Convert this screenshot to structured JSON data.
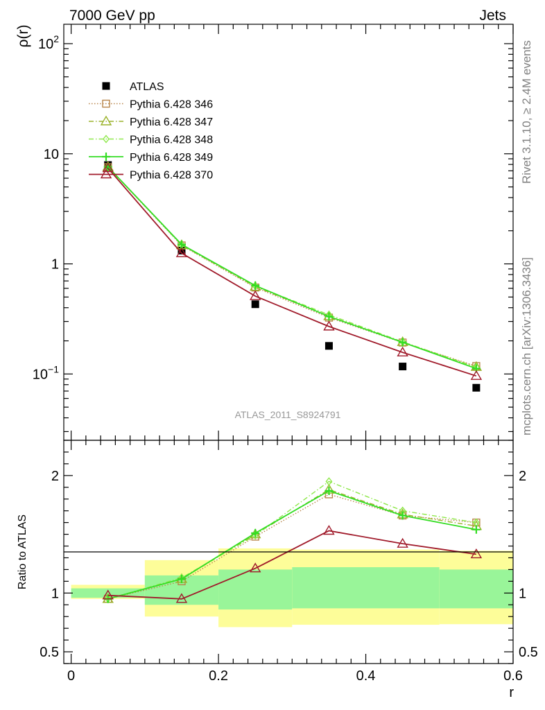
{
  "header": {
    "left": "7000 GeV pp",
    "right": "Jets"
  },
  "side_labels": {
    "rivet": "Rivet 3.1.10, ≥ 2.4M events",
    "mcplots": "mcplots.cern.ch [arXiv:1306.3436]"
  },
  "watermark": "ATLAS_2011_S8924791",
  "chart_data": [
    {
      "type": "line",
      "panel": "main",
      "ylabel": "ρ(r)",
      "xlabel": "",
      "yscale": "log",
      "ylim": [
        0.025,
        150
      ],
      "xlim": [
        -0.01,
        0.6
      ],
      "y_ticks": [
        {
          "v": 100,
          "base": "10",
          "exp": "2"
        },
        {
          "v": 10,
          "base": "10",
          "exp": ""
        },
        {
          "v": 1,
          "base": "1",
          "exp": ""
        },
        {
          "v": 0.1,
          "base": "10",
          "exp": "−1"
        }
      ],
      "legend_position": "top-left",
      "x": [
        0.05,
        0.15,
        0.25,
        0.35,
        0.45,
        0.55
      ],
      "series": [
        {
          "name": "ATLAS",
          "values": [
            7.9,
            1.32,
            0.43,
            0.18,
            0.117,
            0.075
          ],
          "color": "#000000",
          "marker": "square-filled",
          "line": "none"
        },
        {
          "name": "Pythia 6.428 346",
          "values": [
            7.55,
            1.47,
            0.61,
            0.325,
            0.193,
            0.118
          ],
          "color": "#b8864b",
          "marker": "square-open",
          "line": "dotted"
        },
        {
          "name": "Pythia 6.428 347",
          "values": [
            7.6,
            1.48,
            0.62,
            0.335,
            0.195,
            0.116
          ],
          "color": "#9ab22a",
          "marker": "triangle-open",
          "line": "dashdot"
        },
        {
          "name": "Pythia 6.428 348",
          "values": [
            7.55,
            1.49,
            0.63,
            0.345,
            0.196,
            0.115
          ],
          "color": "#8ee84a",
          "marker": "diamond",
          "line": "dashdot"
        },
        {
          "name": "Pythia 6.428 349",
          "values": [
            7.6,
            1.5,
            0.635,
            0.333,
            0.194,
            0.112
          ],
          "color": "#33dd22",
          "marker": "cross",
          "line": "solid"
        },
        {
          "name": "Pythia 6.428 370",
          "values": [
            7.4,
            1.25,
            0.51,
            0.27,
            0.157,
            0.096
          ],
          "color": "#a01a2a",
          "marker": "triangle-open",
          "line": "solid"
        }
      ]
    },
    {
      "type": "line",
      "panel": "ratio",
      "ylabel": "Ratio to ATLAS",
      "xlabel": "r",
      "ylim": [
        0.4,
        2.3
      ],
      "xlim": [
        -0.01,
        0.6
      ],
      "x_ticks": [
        "0",
        "0.2",
        "0.4",
        "0.6"
      ],
      "y_ticks": [
        "0.5",
        "1",
        "2"
      ],
      "x": [
        0.05,
        0.15,
        0.25,
        0.35,
        0.45,
        0.55
      ],
      "bands": [
        {
          "x0": 0.0,
          "x1": 0.1,
          "inner": [
            0.96,
            1.04
          ],
          "outer": [
            0.95,
            1.07
          ]
        },
        {
          "x0": 0.1,
          "x1": 0.2,
          "inner": [
            0.9,
            1.15
          ],
          "outer": [
            0.8,
            1.28
          ]
        },
        {
          "x0": 0.2,
          "x1": 0.3,
          "inner": [
            0.86,
            1.2
          ],
          "outer": [
            0.71,
            1.38
          ]
        },
        {
          "x0": 0.3,
          "x1": 0.5,
          "inner": [
            0.87,
            1.22
          ],
          "outer": [
            0.73,
            1.37
          ]
        },
        {
          "x0": 0.5,
          "x1": 0.6,
          "inner": [
            0.87,
            1.2
          ],
          "outer": [
            0.735,
            1.36
          ]
        }
      ],
      "band_colors": {
        "inner": "#99f599",
        "outer": "#fdfd99"
      },
      "series": [
        {
          "name": "Pythia 6.428 346",
          "values": [
            0.95,
            1.1,
            1.48,
            1.84,
            1.66,
            1.6
          ],
          "color": "#b8864b",
          "marker": "square-open",
          "line": "dotted"
        },
        {
          "name": "Pythia 6.428 347",
          "values": [
            0.95,
            1.12,
            1.5,
            1.88,
            1.67,
            1.57
          ],
          "color": "#9ab22a",
          "marker": "triangle-open",
          "line": "dashdot"
        },
        {
          "name": "Pythia 6.428 348",
          "values": [
            0.95,
            1.13,
            1.49,
            1.95,
            1.7,
            1.6
          ],
          "color": "#8ee84a",
          "marker": "diamond",
          "line": "dashdot"
        },
        {
          "name": "Pythia 6.428 349",
          "values": [
            0.95,
            1.12,
            1.51,
            1.87,
            1.66,
            1.54
          ],
          "color": "#33dd22",
          "marker": "cross",
          "line": "solid"
        },
        {
          "name": "Pythia 6.428 370",
          "values": [
            0.98,
            0.95,
            1.21,
            1.53,
            1.42,
            1.33
          ],
          "color": "#a01a2a",
          "marker": "triangle-open",
          "line": "solid"
        }
      ]
    }
  ]
}
